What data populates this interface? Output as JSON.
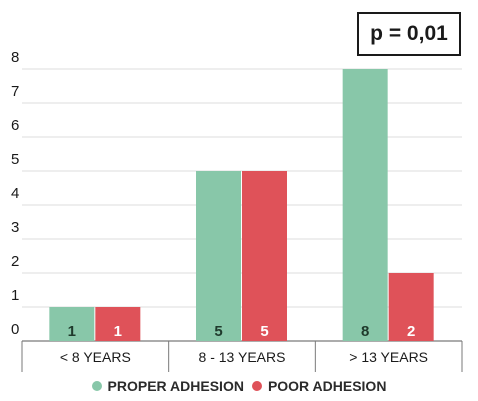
{
  "chart_data": {
    "type": "bar",
    "categories": [
      "< 8 YEARS",
      "8 - 13 YEARS",
      "> 13 YEARS"
    ],
    "series": [
      {
        "name": "PROPER ADHESION",
        "values": [
          1,
          5,
          8
        ],
        "color": "#88c7a9"
      },
      {
        "name": "POOR ADHESION",
        "values": [
          1,
          5,
          2
        ],
        "color": "#df5259"
      }
    ],
    "ylim": [
      0,
      8
    ],
    "yticks": [
      0,
      1,
      2,
      3,
      4,
      5,
      6,
      7,
      8
    ],
    "grid": true,
    "legend_position": "bottom",
    "annotation": "p = 0,01",
    "title": "",
    "xlabel": "",
    "ylabel": ""
  }
}
